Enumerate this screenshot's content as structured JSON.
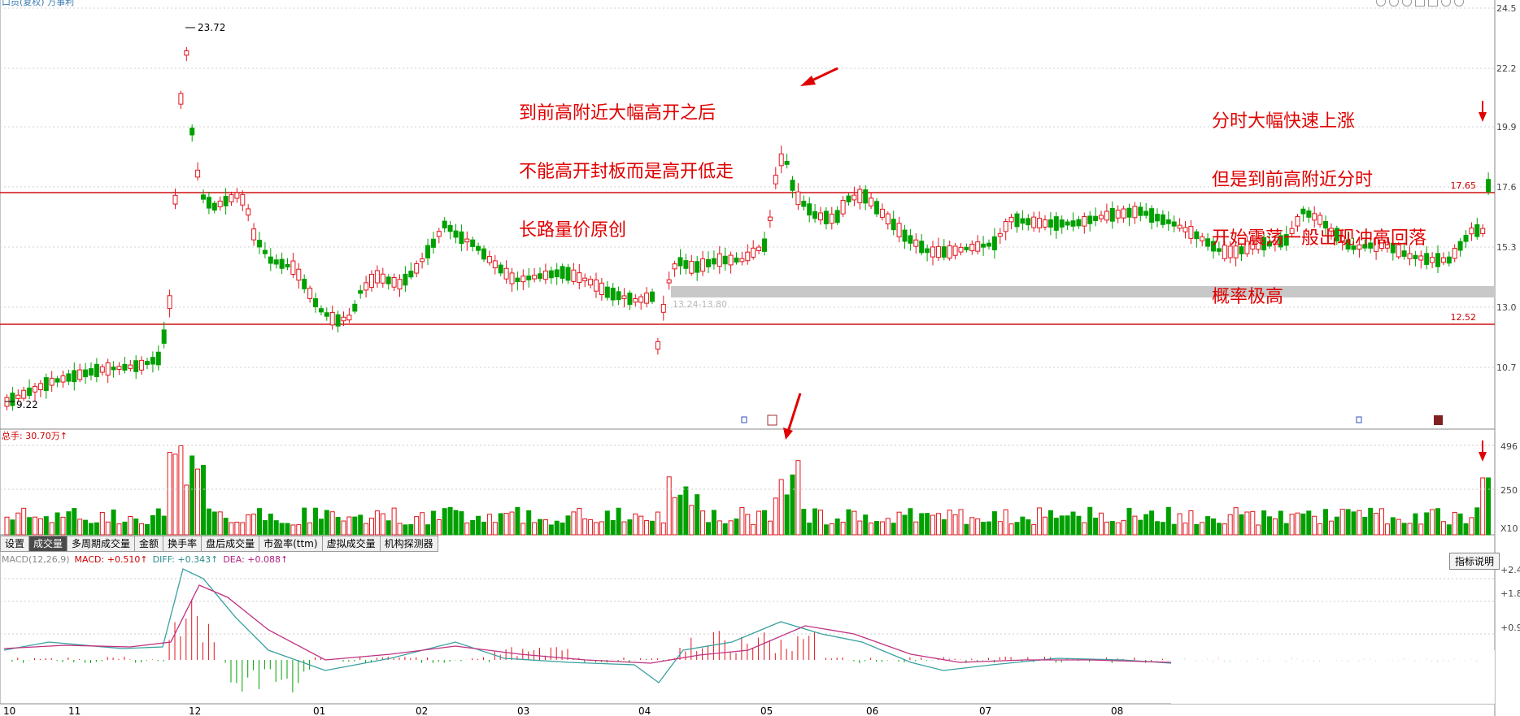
{
  "window": {
    "title_partial": "口员(复权)  万事利"
  },
  "price_axis": {
    "labels": [
      "24.5",
      "22.2",
      "19.9",
      "17.6",
      "15.3",
      "13.0",
      "10.7"
    ]
  },
  "price_marks": {
    "high": "23.72",
    "low": "9.22",
    "resistance_value": "17.65",
    "support_value": "12.52",
    "zone_text": "13.24-13.80"
  },
  "annotations": {
    "left": [
      "到前高附近大幅高开之后",
      "不能高开封板而是高开低走",
      "长路量价原创"
    ],
    "right": [
      "分时大幅快速上涨",
      "但是到前高附近分时",
      "开始震荡一般出现冲高回落",
      "概率极高"
    ]
  },
  "volume": {
    "header": "总手: 30.70万↑",
    "axis": [
      "496",
      "250"
    ],
    "unit": "X10"
  },
  "tabs": [
    "设置",
    "成交量",
    "多周期成交量",
    "金额",
    "换手率",
    "盘后成交量",
    "市盈率(ttm)",
    "虚拟成交量",
    "机构探测器"
  ],
  "active_tab": "成交量",
  "macd": {
    "params": "MACD(12,26,9)",
    "macd": "MACD: +0.510↑",
    "diff": "DIFF: +0.343↑",
    "dea": "DEA: +0.088↑",
    "axis": [
      "+2.4",
      "+1.8",
      "+0.9"
    ],
    "help_label": "指标说明"
  },
  "x_axis": {
    "labels": [
      "10",
      "11",
      "12",
      "01",
      "02",
      "03",
      "04",
      "05",
      "06",
      "07",
      "08"
    ]
  },
  "colors": {
    "up": "#e0141c",
    "down": "#00a000",
    "diff_line": "#3aa0a0",
    "dea_line": "#c03080",
    "ref_line": "#d01010",
    "zone": "#c8c8c8"
  }
}
